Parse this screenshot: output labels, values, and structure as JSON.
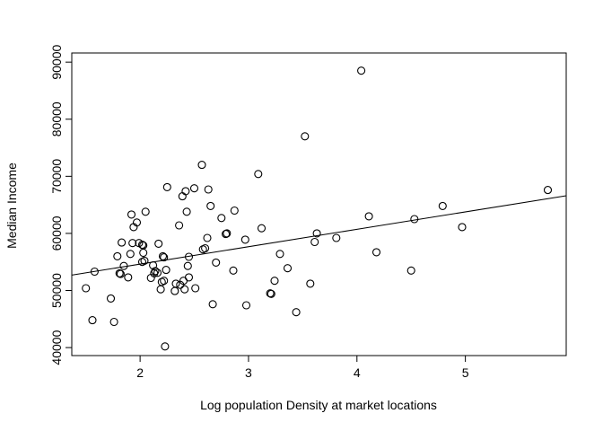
{
  "chart_data": {
    "type": "scatter",
    "title": "",
    "xlabel": "Log population Density at market locations",
    "ylabel": "Median Income",
    "xlim": [
      1.37,
      5.93
    ],
    "ylim": [
      38600,
      91600
    ],
    "x_ticks": [
      2,
      3,
      4,
      5
    ],
    "x_tick_labels": [
      "2",
      "3",
      "4",
      "5"
    ],
    "y_ticks": [
      40000,
      50000,
      60000,
      70000,
      80000,
      90000
    ],
    "y_tick_labels": [
      "40000",
      "50000",
      "60000",
      "70000",
      "80000",
      "90000"
    ],
    "grid": false,
    "legend": null,
    "series": [
      {
        "x": [
          1.5,
          1.56,
          1.58,
          1.73,
          1.76,
          1.79,
          1.81,
          1.82,
          1.83,
          1.85,
          1.89,
          1.91,
          1.92,
          1.93,
          1.94,
          1.97,
          1.99,
          2.02,
          2.02,
          2.03,
          2.03,
          2.04,
          2.05,
          2.1,
          2.12,
          2.13,
          2.14,
          2.16,
          2.17,
          2.19,
          2.2,
          2.21,
          2.22,
          2.22,
          2.23,
          2.24,
          2.25,
          2.32,
          2.33,
          2.36,
          2.37,
          2.39,
          2.4,
          2.41,
          2.42,
          2.43,
          2.44,
          2.45,
          2.45,
          2.5,
          2.51,
          2.57,
          2.58,
          2.6,
          2.62,
          2.63,
          2.65,
          2.67,
          2.7,
          2.75,
          2.79,
          2.8,
          2.86,
          2.87,
          2.97,
          2.98,
          3.09,
          3.12,
          3.2,
          3.21,
          3.24,
          3.29,
          3.36,
          3.44,
          3.52,
          3.57,
          3.61,
          3.63,
          3.81,
          4.04,
          4.11,
          4.18,
          4.5,
          4.53,
          4.79,
          4.97,
          5.76
        ],
        "y": [
          50400,
          44800,
          53300,
          48600,
          44500,
          56000,
          53000,
          52900,
          58400,
          54300,
          52300,
          56400,
          63300,
          58300,
          61100,
          61900,
          58300,
          55000,
          58000,
          57900,
          56600,
          55200,
          63800,
          52200,
          54400,
          53000,
          53400,
          53100,
          58200,
          50200,
          51500,
          56000,
          55800,
          51700,
          40200,
          53600,
          68100,
          49900,
          51200,
          61400,
          51000,
          66500,
          51700,
          50200,
          67400,
          63800,
          54300,
          55900,
          52300,
          67900,
          50400,
          72000,
          57200,
          57400,
          59200,
          67700,
          64800,
          47600,
          54900,
          62700,
          59900,
          60000,
          53500,
          64000,
          58900,
          47400,
          70400,
          60900,
          49500,
          49400,
          51700,
          56400,
          53900,
          46200,
          77000,
          51200,
          58500,
          60000,
          59200,
          88500,
          63000,
          56700,
          53500,
          62500,
          64800,
          61100,
          67600
        ]
      }
    ],
    "fit_line": {
      "x": [
        1.37,
        5.93
      ],
      "y": [
        52700,
        66600
      ]
    }
  }
}
